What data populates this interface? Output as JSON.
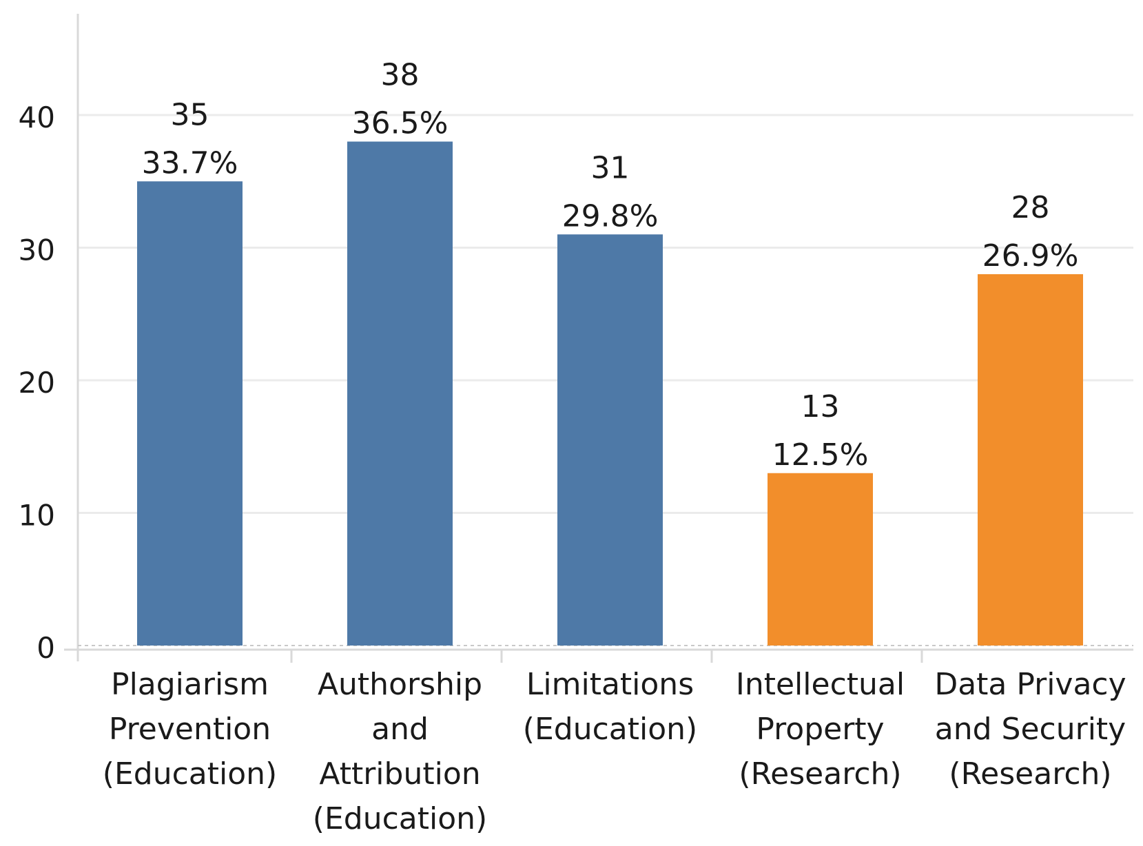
{
  "chart_data": {
    "type": "bar",
    "title": "",
    "xlabel": "",
    "ylabel": "",
    "ylim": [
      -2,
      48
    ],
    "yticks": [
      0,
      10,
      20,
      30,
      40
    ],
    "grid": true,
    "legend": "none",
    "categories": [
      [
        "Plagiarism",
        "Prevention",
        "(Education)"
      ],
      [
        "Authorship",
        "and",
        "Attribution",
        "(Education)"
      ],
      [
        "Limitations",
        "(Education)"
      ],
      [
        "Intellectual",
        "Property",
        "(Research)"
      ],
      [
        "Data Privacy",
        "and Security",
        "(Research)"
      ]
    ],
    "values": [
      35,
      38,
      31,
      13,
      28
    ],
    "percent_labels": [
      "33.7%",
      "36.5%",
      "29.8%",
      "12.5%",
      "26.9%"
    ],
    "groups": [
      "Education",
      "Education",
      "Education",
      "Research",
      "Research"
    ],
    "colors": {
      "Education": "#4e79a7",
      "Research": "#f28e2b",
      "gridline": "#ebebeb",
      "axis": "#d9d9d9"
    }
  }
}
